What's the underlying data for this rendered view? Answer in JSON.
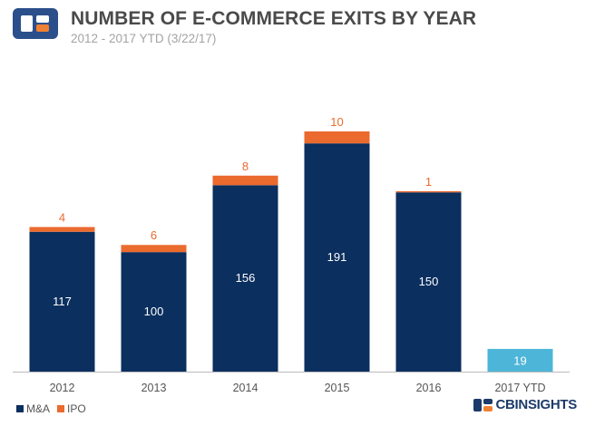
{
  "header": {
    "title": "NUMBER OF E-COMMERCE EXITS BY YEAR",
    "subtitle": "2012 - 2017 YTD (3/22/17)"
  },
  "brand": {
    "cb": "CB",
    "rest": "INSIGHTS"
  },
  "colors": {
    "ma": "#0b2f5e",
    "ipo": "#eb6a2e",
    "ytd": "#4db5d8",
    "axis": "#bbbbbb",
    "logo_blue": "#2b4f8a",
    "logo_orange": "#f08033"
  },
  "chart_data": {
    "type": "bar",
    "stacked": true,
    "categories": [
      "2012",
      "2013",
      "2014",
      "2015",
      "2016",
      "2017 YTD"
    ],
    "series": [
      {
        "name": "M&A",
        "values": [
          117,
          100,
          156,
          191,
          150,
          null
        ]
      },
      {
        "name": "IPO",
        "values": [
          4,
          6,
          8,
          10,
          1,
          null
        ]
      }
    ],
    "total_only": [
      null,
      null,
      null,
      null,
      null,
      19
    ],
    "legend": {
      "position": "bottom-left",
      "entries": [
        "M&A",
        "IPO"
      ]
    },
    "ylim": [
      0,
      201
    ],
    "grid": false
  }
}
